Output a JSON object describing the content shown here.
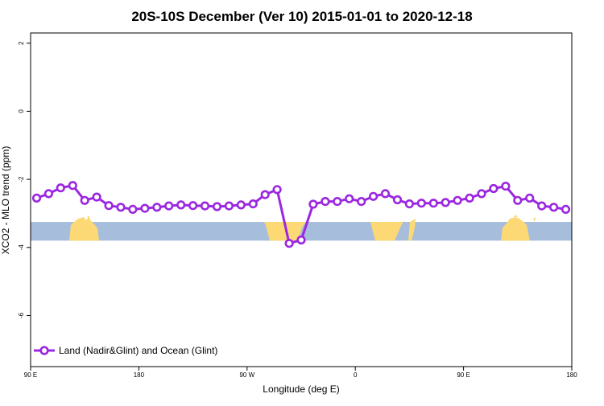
{
  "chart_data": {
    "type": "line",
    "title": "20S-10S December (Ver 10)   2015-01-01 to 2020-12-18",
    "xlabel": "Longitude (deg E)",
    "ylabel": "XCO2 - MLO trend (ppm)",
    "xlim": [
      90,
      540
    ],
    "ylim": [
      -7.5,
      2.3
    ],
    "x_ticks": [
      {
        "value": 90,
        "label": "90 E"
      },
      {
        "value": 180,
        "label": "180"
      },
      {
        "value": 270,
        "label": "90 W"
      },
      {
        "value": 360,
        "label": "0"
      },
      {
        "value": 450,
        "label": "90 E"
      },
      {
        "value": 540,
        "label": "180"
      }
    ],
    "y_ticks": [
      {
        "value": 2,
        "label": "2"
      },
      {
        "value": 0,
        "label": "0"
      },
      {
        "value": -2,
        "label": "-2"
      },
      {
        "value": -4,
        "label": "-4"
      },
      {
        "value": -6,
        "label": "-6"
      }
    ],
    "legend_position": "bottom-left",
    "series": [
      {
        "name": "Land (Nadir&Glint) and Ocean (Glint)",
        "color": "#9b27e0",
        "x": [
          95,
          105,
          115,
          125,
          135,
          145,
          155,
          165,
          175,
          185,
          195,
          205,
          215,
          225,
          235,
          245,
          255,
          265,
          275,
          285,
          295,
          305,
          315,
          325,
          335,
          345,
          355,
          365,
          375,
          385,
          395,
          405,
          415,
          425,
          435,
          445,
          455,
          465,
          475,
          485,
          495,
          505,
          515,
          525,
          535
        ],
        "y": [
          -2.55,
          -2.42,
          -2.25,
          -2.18,
          -2.62,
          -2.52,
          -2.77,
          -2.82,
          -2.88,
          -2.85,
          -2.82,
          -2.78,
          -2.75,
          -2.77,
          -2.78,
          -2.8,
          -2.78,
          -2.75,
          -2.72,
          -2.45,
          -2.3,
          -3.88,
          -3.78,
          -2.73,
          -2.65,
          -2.65,
          -2.57,
          -2.65,
          -2.5,
          -2.42,
          -2.6,
          -2.72,
          -2.7,
          -2.7,
          -2.68,
          -2.62,
          -2.55,
          -2.42,
          -2.27,
          -2.2,
          -2.62,
          -2.55,
          -2.78,
          -2.82,
          -2.88
        ]
      }
    ],
    "background_map": {
      "lat_band": "20S-10S",
      "ocean_color": "#a6bddb",
      "land_color": "#fdd976",
      "y_range": [
        -3.8,
        -3.25
      ]
    }
  }
}
